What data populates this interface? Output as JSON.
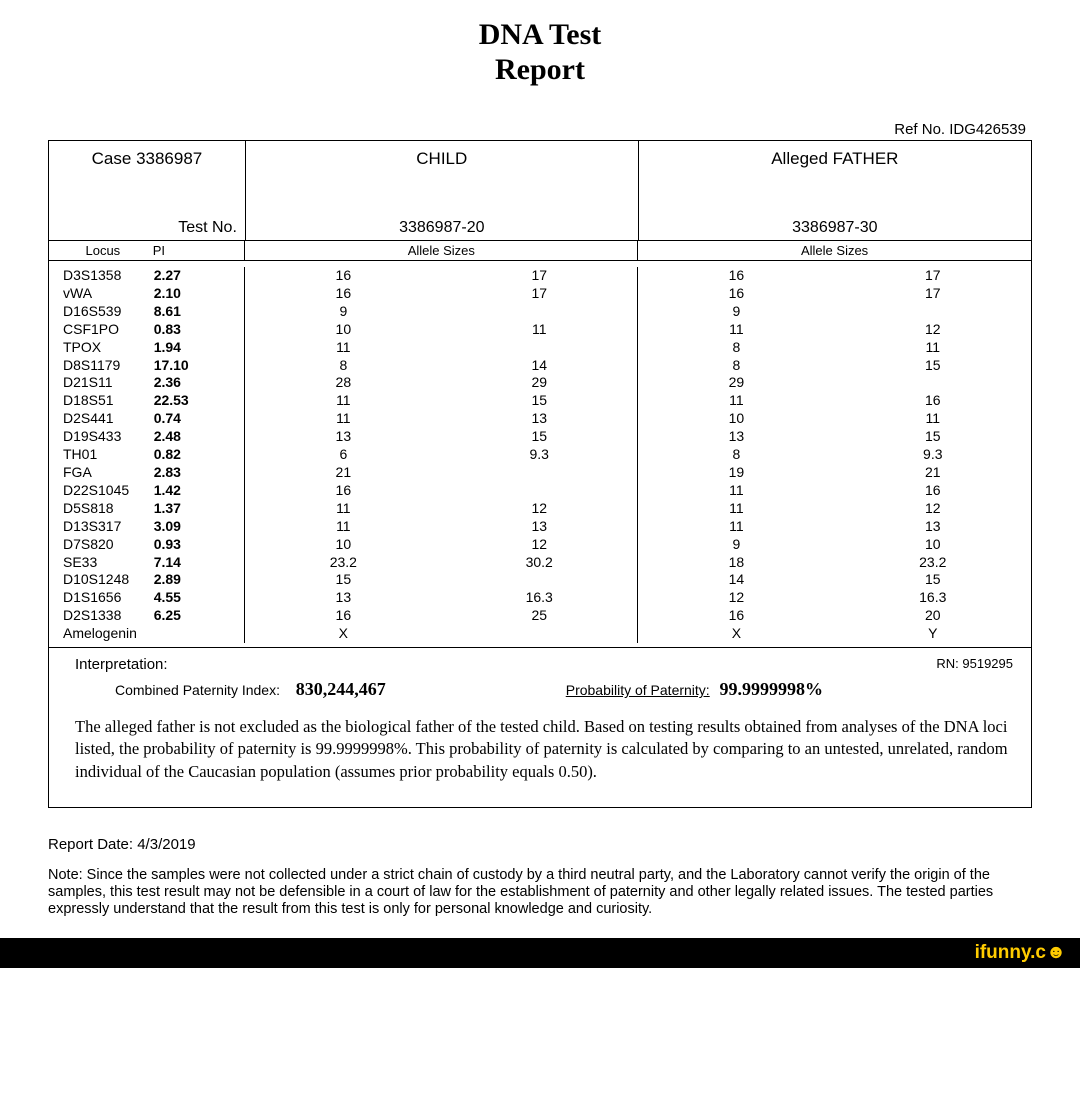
{
  "title": {
    "line1": "DNA Test",
    "line2": "Report"
  },
  "refLabel": "Ref No.",
  "refNo": "IDG426539",
  "header": {
    "caseLabel": "Case",
    "caseNo": "3386987",
    "child": "CHILD",
    "father": "Alleged FATHER",
    "testNoLabel": "Test No.",
    "childTestNo": "3386987-20",
    "fatherTestNo": "3386987-30"
  },
  "sizesHeader": {
    "locus": "Locus",
    "pi": "PI",
    "allele": "Allele Sizes"
  },
  "rows": [
    {
      "locus": "D3S1358",
      "pi": "2.27",
      "c1": "16",
      "c2": "17",
      "f1": "16",
      "f2": "17"
    },
    {
      "locus": "vWA",
      "pi": "2.10",
      "c1": "16",
      "c2": "17",
      "f1": "16",
      "f2": "17"
    },
    {
      "locus": "D16S539",
      "pi": "8.61",
      "c1": "9",
      "c2": "",
      "f1": "9",
      "f2": ""
    },
    {
      "locus": "CSF1PO",
      "pi": "0.83",
      "c1": "10",
      "c2": "11",
      "f1": "11",
      "f2": "12"
    },
    {
      "locus": "TPOX",
      "pi": "1.94",
      "c1": "11",
      "c2": "",
      "f1": "8",
      "f2": "11"
    },
    {
      "locus": "D8S1179",
      "pi": "17.10",
      "c1": "8",
      "c2": "14",
      "f1": "8",
      "f2": "15"
    },
    {
      "locus": "D21S11",
      "pi": "2.36",
      "c1": "28",
      "c2": "29",
      "f1": "29",
      "f2": ""
    },
    {
      "locus": "D18S51",
      "pi": "22.53",
      "c1": "11",
      "c2": "15",
      "f1": "11",
      "f2": "16"
    },
    {
      "locus": "D2S441",
      "pi": "0.74",
      "c1": "11",
      "c2": "13",
      "f1": "10",
      "f2": "11"
    },
    {
      "locus": "D19S433",
      "pi": "2.48",
      "c1": "13",
      "c2": "15",
      "f1": "13",
      "f2": "15"
    },
    {
      "locus": "TH01",
      "pi": "0.82",
      "c1": "6",
      "c2": "9.3",
      "f1": "8",
      "f2": "9.3"
    },
    {
      "locus": "FGA",
      "pi": "2.83",
      "c1": "21",
      "c2": "",
      "f1": "19",
      "f2": "21"
    },
    {
      "locus": "D22S1045",
      "pi": "1.42",
      "c1": "16",
      "c2": "",
      "f1": "11",
      "f2": "16"
    },
    {
      "locus": "D5S818",
      "pi": "1.37",
      "c1": "11",
      "c2": "12",
      "f1": "11",
      "f2": "12"
    },
    {
      "locus": "D13S317",
      "pi": "3.09",
      "c1": "11",
      "c2": "13",
      "f1": "11",
      "f2": "13"
    },
    {
      "locus": "D7S820",
      "pi": "0.93",
      "c1": "10",
      "c2": "12",
      "f1": "9",
      "f2": "10"
    },
    {
      "locus": "SE33",
      "pi": "7.14",
      "c1": "23.2",
      "c2": "30.2",
      "f1": "18",
      "f2": "23.2"
    },
    {
      "locus": "D10S1248",
      "pi": "2.89",
      "c1": "15",
      "c2": "",
      "f1": "14",
      "f2": "15"
    },
    {
      "locus": "D1S1656",
      "pi": "4.55",
      "c1": "13",
      "c2": "16.3",
      "f1": "12",
      "f2": "16.3"
    },
    {
      "locus": "D2S1338",
      "pi": "6.25",
      "c1": "16",
      "c2": "25",
      "f1": "16",
      "f2": "20"
    },
    {
      "locus": "Amelogenin",
      "pi": "",
      "c1": "X",
      "c2": "",
      "f1": "X",
      "f2": "Y"
    }
  ],
  "interp": {
    "label": "Interpretation:",
    "rnLabel": "RN:",
    "rn": "9519295",
    "cpiLabel": "Combined Paternity Index:",
    "cpi": "830,244,467",
    "popLabel": "Probability of Paternity:",
    "pop": "99.9999998%",
    "body": "The alleged father is not excluded as the biological father of the tested child.  Based on testing results obtained from analyses of the DNA loci listed, the probability of paternity is 99.9999998%.  This probability of paternity is calculated by comparing to an untested, unrelated, random individual of the Caucasian population (assumes prior probability equals 0.50)."
  },
  "reportDateLabel": "Report Date:",
  "reportDate": "4/3/2019",
  "note": "Note:  Since the samples were not collected under a strict chain of custody by a third neutral party, and the Laboratory cannot verify the origin of the samples,  this test result may not be defensible in a court of law for the establishment of paternity and other legally related issues.  The tested parties expressly understand that the result from this test is only for personal knowledge and curiosity.",
  "watermark": {
    "brand": "ifunny.",
    "suffix": "c",
    "emoji": "☻"
  }
}
